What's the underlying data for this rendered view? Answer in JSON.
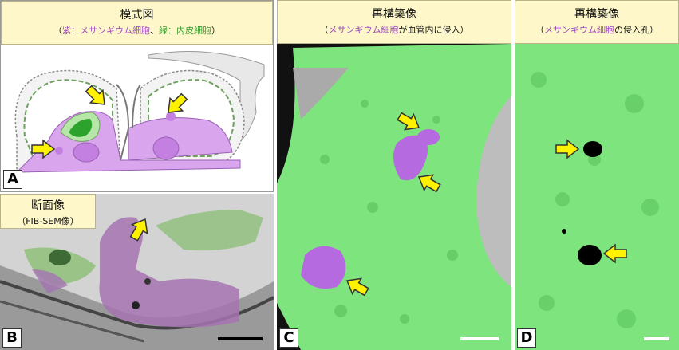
{
  "panels": {
    "A": {
      "letter": "A",
      "title": "模式図",
      "subtitle_parts": [
        "（",
        "紫：メサンギウム細胞",
        "、",
        "緑：内皮細胞",
        "）"
      ]
    },
    "B": {
      "letter": "B",
      "title": "断面像",
      "subtitle": "（FIB-SEM像）"
    },
    "C": {
      "letter": "C",
      "title": "再構築像",
      "subtitle_parts": [
        "（",
        "メサンギウム細胞",
        "が血管内に侵入）"
      ]
    },
    "D": {
      "letter": "D",
      "title": "再構築像",
      "subtitle_parts": [
        "（",
        "メサンギウム細胞",
        "の侵入孔）"
      ]
    }
  }
}
